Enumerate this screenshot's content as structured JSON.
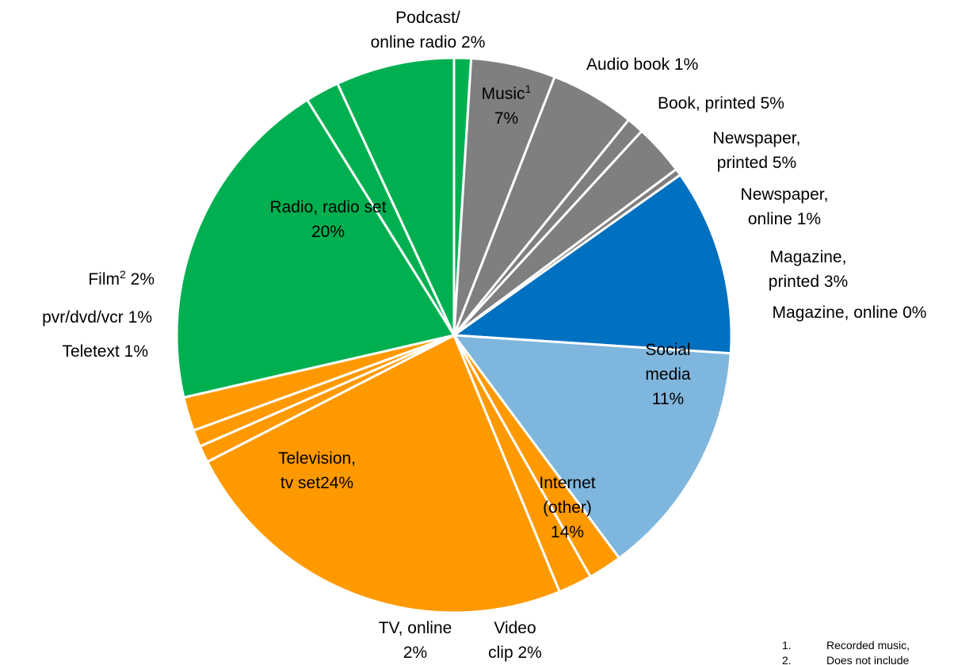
{
  "chart_data": {
    "type": "pie",
    "title": "",
    "start_angle_deg": 0,
    "direction": "clockwise",
    "slices": [
      {
        "key": "audio_book",
        "lines": [
          "Audio book 1%"
        ],
        "value": 1,
        "color": "#00b050"
      },
      {
        "key": "book_printed",
        "lines": [
          "Book, printed 5%"
        ],
        "value": 5,
        "color": "#7f7f7f"
      },
      {
        "key": "newspaper_printed",
        "lines": [
          "Newspaper,",
          "printed 5%"
        ],
        "value": 5,
        "color": "#7f7f7f"
      },
      {
        "key": "newspaper_online",
        "lines": [
          "Newspaper,",
          "online 1%"
        ],
        "value": 1,
        "color": "#7f7f7f"
      },
      {
        "key": "magazine_printed",
        "lines": [
          "Magazine,",
          "printed 3%"
        ],
        "value": 3,
        "color": "#7f7f7f"
      },
      {
        "key": "magazine_online",
        "lines": [
          "Magazine, online 0%"
        ],
        "value": 0.4,
        "color": "#7f7f7f"
      },
      {
        "key": "social_media",
        "lines": [
          "Social",
          "media",
          "11%"
        ],
        "value": 11,
        "color": "#0070c0"
      },
      {
        "key": "internet_other",
        "lines": [
          "Internet",
          "(other)",
          "14%"
        ],
        "value": 14,
        "color": "#7fb6dd"
      },
      {
        "key": "video_clip",
        "lines": [
          "Video",
          "clip 2%"
        ],
        "value": 2,
        "color": "#ff9900"
      },
      {
        "key": "tv_online",
        "lines": [
          "TV, online",
          "2%"
        ],
        "value": 2,
        "color": "#ff9900"
      },
      {
        "key": "television",
        "lines": [
          "Television,",
          "tv set24%"
        ],
        "value": 24,
        "color": "#ff9900"
      },
      {
        "key": "teletext",
        "lines": [
          "Teletext 1%"
        ],
        "value": 1,
        "color": "#ff9900"
      },
      {
        "key": "pvr",
        "lines": [
          "pvr/dvd/vcr 1%"
        ],
        "value": 1,
        "color": "#ff9900"
      },
      {
        "key": "film",
        "lines": [
          "Film",
          " 2%"
        ],
        "sup": "2",
        "value": 2,
        "color": "#ff9900"
      },
      {
        "key": "radio",
        "lines": [
          "Radio, radio set",
          "20%"
        ],
        "value": 20,
        "color": "#00b050"
      },
      {
        "key": "podcast",
        "lines": [
          "Podcast/",
          "online radio 2%"
        ],
        "value": 2,
        "color": "#00b050"
      },
      {
        "key": "music",
        "lines": [
          "Music",
          "7%"
        ],
        "sup": "1",
        "value": 7,
        "color": "#00b050"
      }
    ],
    "footnotes": [
      {
        "num": "1.",
        "text": "Recorded music,"
      },
      {
        "num": "2.",
        "text": "Does not include"
      }
    ]
  }
}
